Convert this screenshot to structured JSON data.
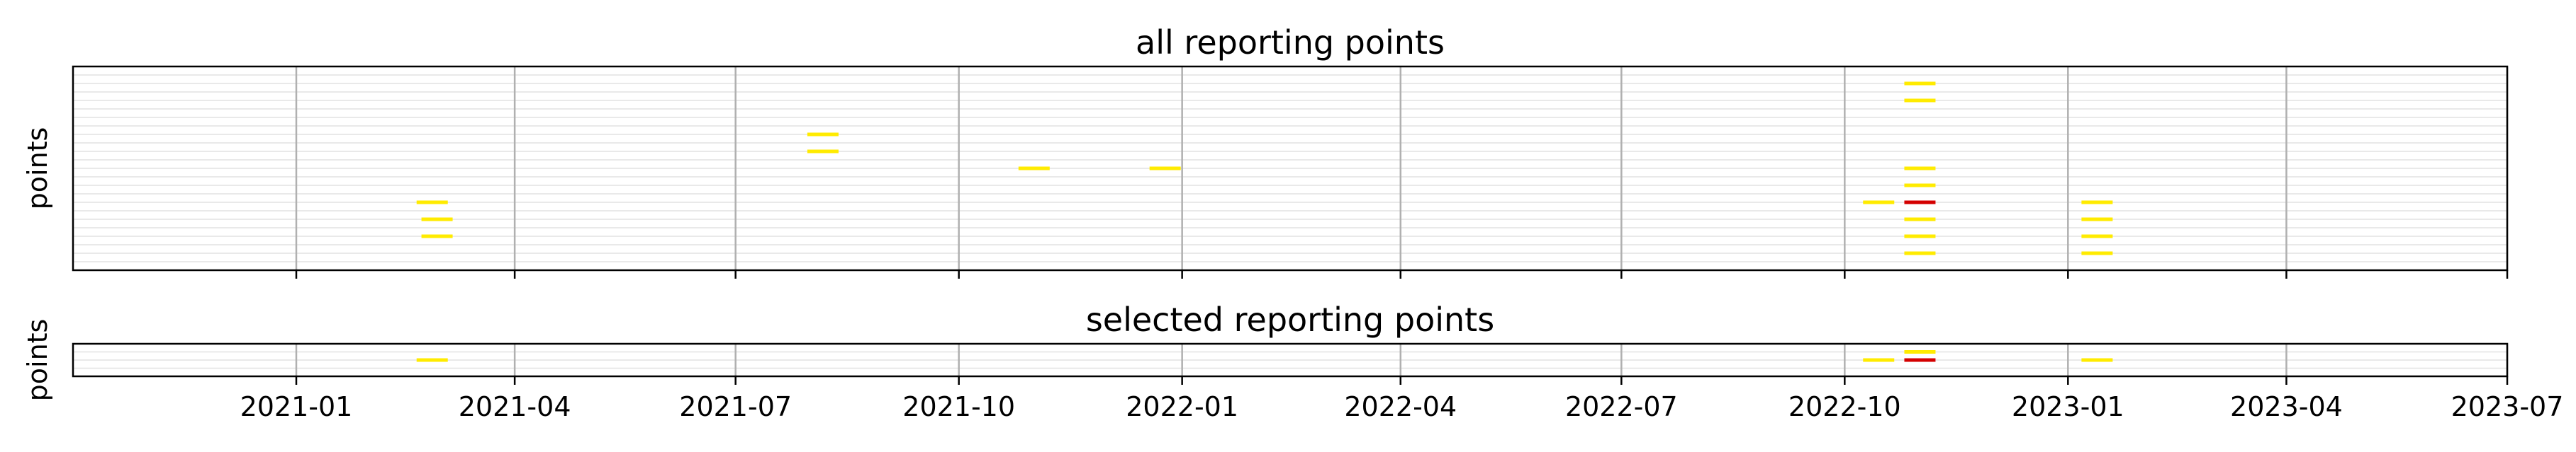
{
  "chart_data": [
    {
      "type": "scatter",
      "marker": "hline",
      "title": "all reporting points",
      "ylabel": "points",
      "xlabel": "",
      "xlim": [
        "2020-10-01",
        "2023-07-01"
      ],
      "ylim": [
        0,
        12
      ],
      "x_grid": true,
      "y_grid": true,
      "xticks": [
        "2021-01",
        "2021-04",
        "2021-07",
        "2021-10",
        "2022-01",
        "2022-04",
        "2022-07",
        "2022-10",
        "2023-01",
        "2023-04",
        "2023-07"
      ],
      "show_xtick_labels": false,
      "colors": {
        "normal": "#ffeb00",
        "highlight": "#d40000"
      },
      "points": [
        {
          "date": "2021-02-26",
          "row": 4
        },
        {
          "date": "2021-02-28",
          "row": 3
        },
        {
          "date": "2021-02-28",
          "row": 2
        },
        {
          "date": "2021-08-06",
          "row": 8
        },
        {
          "date": "2021-08-06",
          "row": 7
        },
        {
          "date": "2021-11-01",
          "row": 6
        },
        {
          "date": "2021-12-25",
          "row": 6
        },
        {
          "date": "2022-10-15",
          "row": 4
        },
        {
          "date": "2022-11-01",
          "row": 11
        },
        {
          "date": "2022-11-01",
          "row": 10
        },
        {
          "date": "2022-11-01",
          "row": 6
        },
        {
          "date": "2022-11-01",
          "row": 5
        },
        {
          "date": "2022-11-01",
          "row": 4,
          "highlight": true
        },
        {
          "date": "2022-11-01",
          "row": 3
        },
        {
          "date": "2022-11-01",
          "row": 2
        },
        {
          "date": "2022-11-01",
          "row": 1
        },
        {
          "date": "2023-01-13",
          "row": 4
        },
        {
          "date": "2023-01-13",
          "row": 3
        },
        {
          "date": "2023-01-13",
          "row": 2
        },
        {
          "date": "2023-01-13",
          "row": 1
        }
      ]
    },
    {
      "type": "scatter",
      "marker": "hline",
      "title": "selected reporting points",
      "ylabel": "points",
      "xlabel": "",
      "xlim": [
        "2020-10-01",
        "2023-07-01"
      ],
      "ylim": [
        0,
        2
      ],
      "x_grid": true,
      "y_grid": true,
      "xticks": [
        "2021-01",
        "2021-04",
        "2021-07",
        "2021-10",
        "2022-01",
        "2022-04",
        "2022-07",
        "2022-10",
        "2023-01",
        "2023-04",
        "2023-07"
      ],
      "show_xtick_labels": true,
      "colors": {
        "normal": "#ffeb00",
        "highlight": "#d40000"
      },
      "points": [
        {
          "date": "2021-02-26",
          "row": 1
        },
        {
          "date": "2022-10-15",
          "row": 1
        },
        {
          "date": "2022-11-01",
          "row": 1.5
        },
        {
          "date": "2022-11-01",
          "row": 1,
          "highlight": true
        },
        {
          "date": "2023-01-13",
          "row": 1
        }
      ]
    }
  ]
}
